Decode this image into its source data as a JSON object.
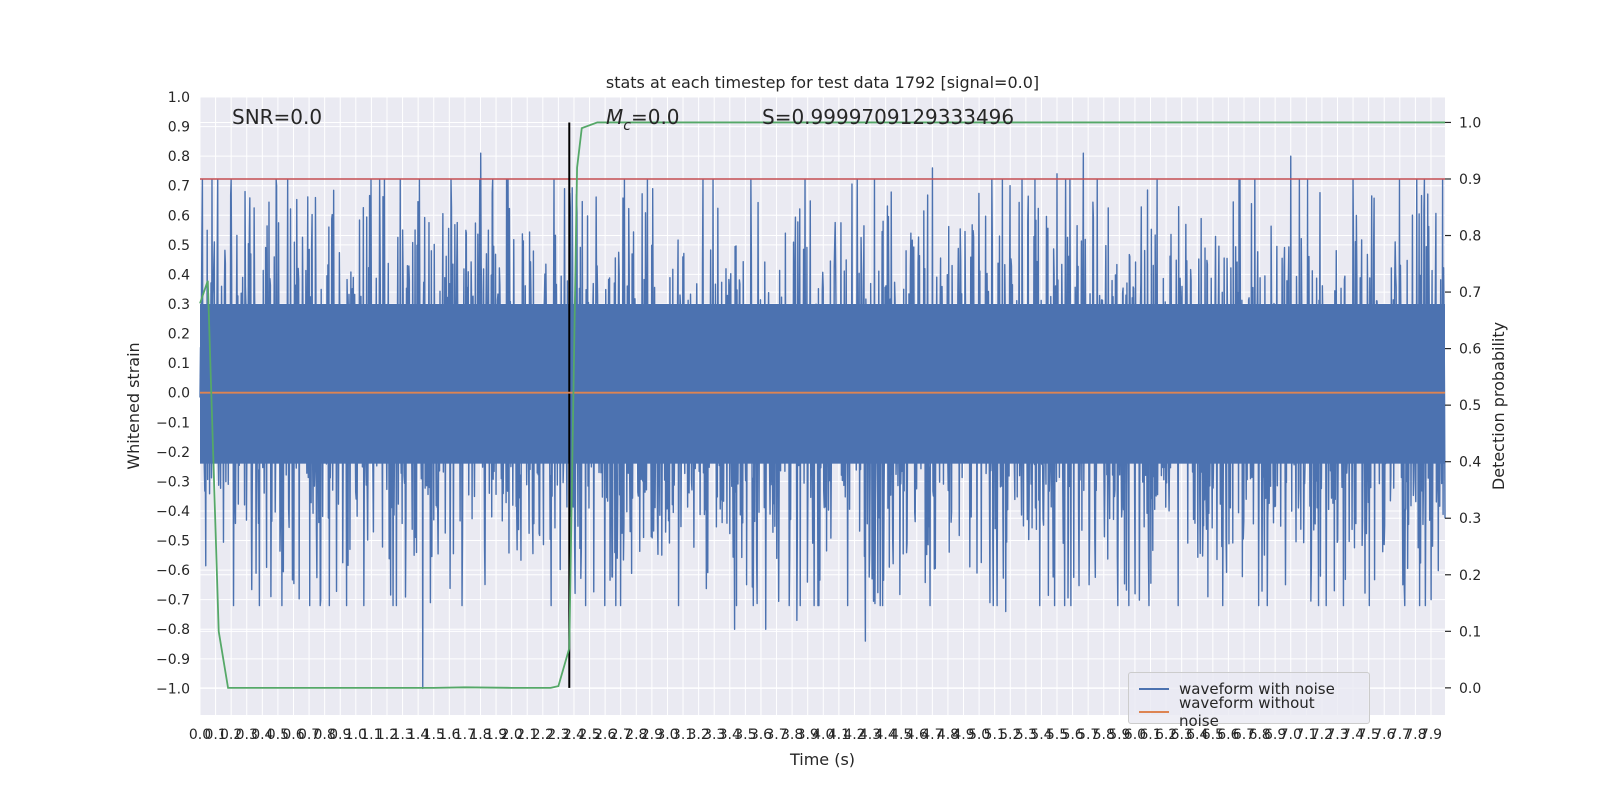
{
  "chart_data": {
    "type": "line",
    "title": "stats at each timestep for test data 1792 [signal=0.0]",
    "xlabel": "Time (s)",
    "ylabel_left": "Whitened strain",
    "ylabel_right": "Detection probability",
    "xlim": [
      0.0,
      7.99
    ],
    "ylim_left": [
      -1.09,
      1.0
    ],
    "ylim_right": [
      -0.048,
      1.045
    ],
    "x_ticks": [
      "0.0",
      "0.1",
      "0.2",
      "0.3",
      "0.4",
      "0.5",
      "0.6",
      "0.7",
      "0.8",
      "0.9",
      "1.0",
      "1.1",
      "1.2",
      "1.3",
      "1.4",
      "1.5",
      "1.6",
      "1.7",
      "1.8",
      "1.9",
      "2.0",
      "2.1",
      "2.2",
      "2.3",
      "2.4",
      "2.5",
      "2.6",
      "2.7",
      "2.8",
      "2.9",
      "3.0",
      "3.1",
      "3.2",
      "3.3",
      "3.4",
      "3.5",
      "3.6",
      "3.7",
      "3.8",
      "3.9",
      "4.0",
      "4.1",
      "4.2",
      "4.3",
      "4.4",
      "4.5",
      "4.6",
      "4.7",
      "4.8",
      "4.9",
      "5.0",
      "5.1",
      "5.2",
      "5.3",
      "5.4",
      "5.5",
      "5.6",
      "5.7",
      "5.8",
      "5.9",
      "6.0",
      "6.1",
      "6.2",
      "6.3",
      "6.4",
      "6.5",
      "6.6",
      "6.7",
      "6.8",
      "6.9",
      "7.0",
      "7.1",
      "7.2",
      "7.3",
      "7.4",
      "7.5",
      "7.6",
      "7.7",
      "7.8",
      "7.9"
    ],
    "y_ticks_left": [
      "1.0",
      "0.9",
      "0.8",
      "0.7",
      "0.6",
      "0.5",
      "0.4",
      "0.3",
      "0.2",
      "0.1",
      "0.0",
      "−0.1",
      "−0.2",
      "−0.3",
      "−0.4",
      "−0.5",
      "−0.6",
      "−0.7",
      "−0.8",
      "−0.9",
      "−1.0"
    ],
    "y_ticks_right": [
      "1.0",
      "0.9",
      "0.8",
      "0.7",
      "0.6",
      "0.5",
      "0.4",
      "0.3",
      "0.2",
      "0.1",
      "0.0"
    ],
    "annotations": [
      {
        "text": "SNR=0.0"
      },
      {
        "text": "M",
        "subscript": "c",
        "suffix": "=0.0"
      },
      {
        "text": "S=0.9999709129333496"
      }
    ],
    "threshold_line": {
      "axis": "right",
      "value": 0.9,
      "color": "#c44e52"
    },
    "marker_line": {
      "x": 2.37,
      "color": "#000000"
    },
    "series": [
      {
        "name": "waveform with noise",
        "axis": "left",
        "color": "#4c72b0",
        "description_range": [
          -0.45,
          0.5
        ],
        "peaks": [
          [
            0.09,
            0.45
          ],
          [
            0.2,
            0.72
          ],
          [
            0.29,
            0.68
          ],
          [
            0.74,
            0.66
          ],
          [
            1.3,
            0.55
          ],
          [
            1.38,
            0.55
          ],
          [
            1.61,
            0.72
          ],
          [
            1.8,
            0.81
          ],
          [
            4.33,
            0.72
          ],
          [
            4.7,
            0.76
          ],
          [
            5.2,
            0.7
          ],
          [
            5.5,
            0.74
          ],
          [
            5.67,
            0.81
          ],
          [
            7.0,
            0.8
          ],
          [
            7.9,
            0.92
          ],
          [
            1.43,
            -1.0
          ],
          [
            1.48,
            -0.71
          ],
          [
            3.43,
            -0.8
          ],
          [
            3.63,
            -0.8
          ],
          [
            3.83,
            -0.77
          ],
          [
            4.27,
            -0.84
          ],
          [
            5.07,
            -0.71
          ],
          [
            5.17,
            -0.74
          ],
          [
            6.0,
            -0.68
          ],
          [
            7.28,
            -0.67
          ],
          [
            7.9,
            -0.7
          ]
        ]
      },
      {
        "name": "waveform without noise",
        "axis": "left",
        "color": "#dd8452",
        "values": [
          [
            0.0,
            0.0
          ],
          [
            7.99,
            0.0
          ]
        ]
      },
      {
        "name": "detection probability",
        "axis": "right",
        "color": "#55a868",
        "values": [
          [
            0.0,
            0.68
          ],
          [
            0.05,
            0.72
          ],
          [
            0.12,
            0.1
          ],
          [
            0.18,
            0.0
          ],
          [
            0.5,
            0.0
          ],
          [
            1.0,
            0.0
          ],
          [
            1.5,
            0.0
          ],
          [
            1.7,
            0.001
          ],
          [
            2.0,
            0.0
          ],
          [
            2.25,
            0.0
          ],
          [
            2.3,
            0.003
          ],
          [
            2.37,
            0.07
          ],
          [
            2.42,
            0.92
          ],
          [
            2.45,
            0.99
          ],
          [
            2.55,
            1.0
          ],
          [
            7.99,
            1.0
          ]
        ]
      }
    ],
    "legend": {
      "location": "lower right",
      "entries": [
        "waveform with noise",
        "waveform without noise"
      ]
    }
  }
}
